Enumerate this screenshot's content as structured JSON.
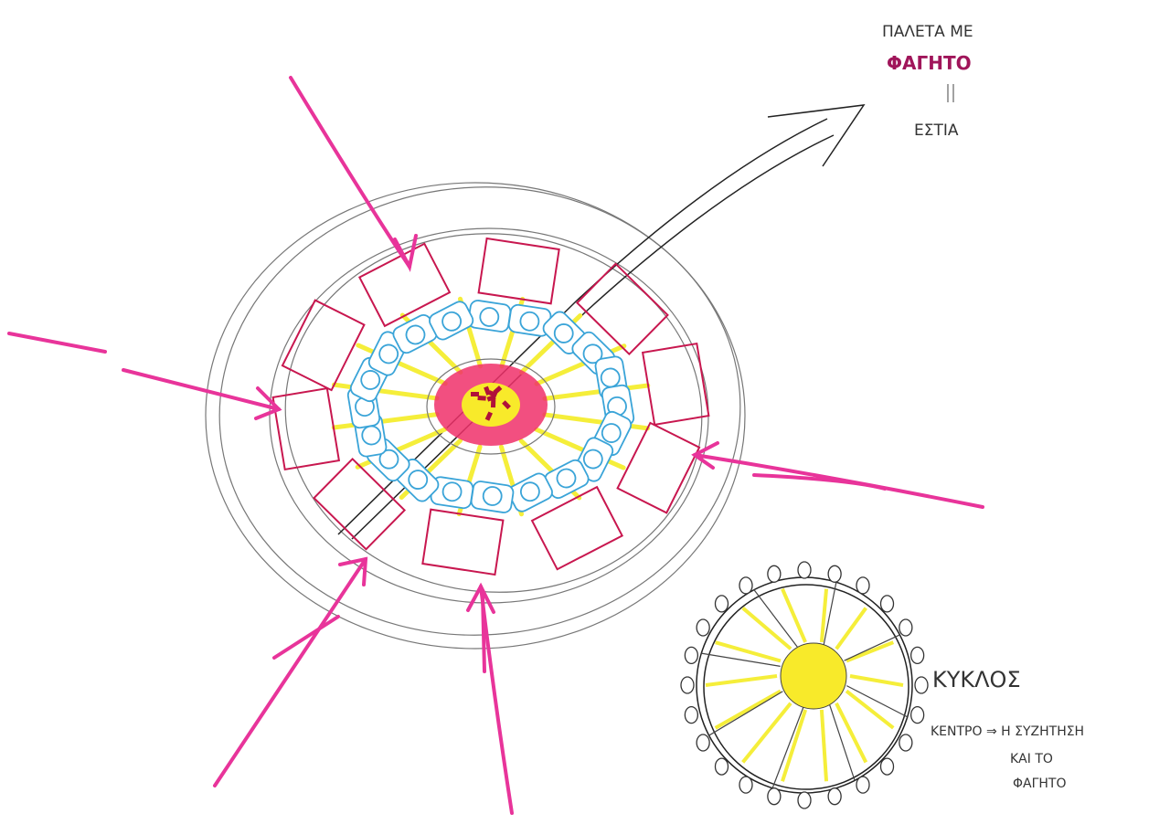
{
  "note": {
    "lines": [
      "ΠΑΛΕΤΑ ΜΕ",
      "ΦΑΓΗΤΟ",
      "ΕΣΤΙΑ"
    ]
  },
  "legend": {
    "title": "ΚΥΚΛΟΣ",
    "lines": [
      "ΚΕΝΤΡΟ ⇒ Η ΣΥΖΗΤΗΣΗ",
      "ΚΑΙ ΤΟ",
      "ΦΑΓΗΤΟ"
    ]
  }
}
